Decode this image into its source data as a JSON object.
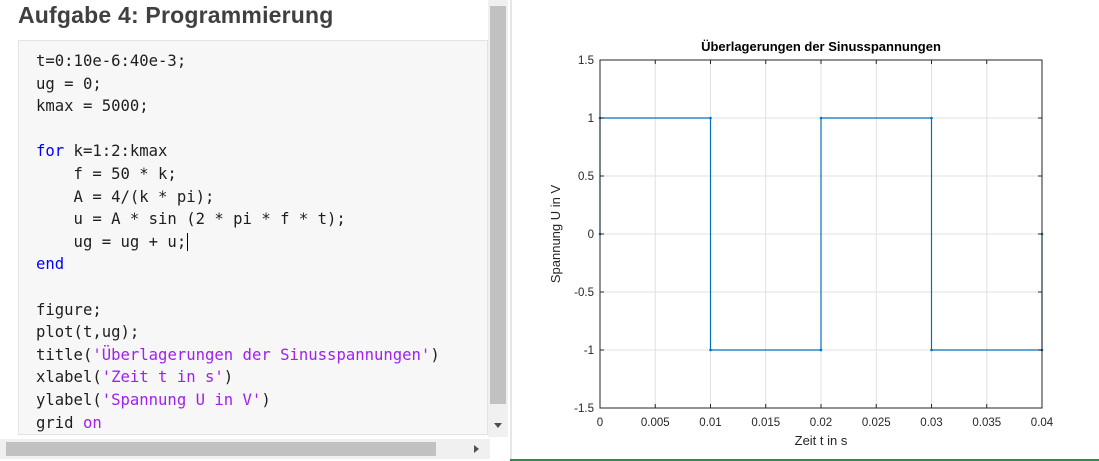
{
  "section": {
    "title": "Aufgabe 4: Programmierung"
  },
  "code": {
    "lines": [
      [
        {
          "t": "t=0:10e-6:40e-3;",
          "k": "plain"
        }
      ],
      [
        {
          "t": "ug = 0;",
          "k": "plain"
        }
      ],
      [
        {
          "t": "kmax = 5000;",
          "k": "plain"
        }
      ],
      [
        {
          "t": "",
          "k": "plain"
        }
      ],
      [
        {
          "t": "for",
          "k": "keyword"
        },
        {
          "t": " k=1:2:kmax",
          "k": "plain"
        }
      ],
      [
        {
          "t": "    f = 50 * k;",
          "k": "plain"
        }
      ],
      [
        {
          "t": "    A = 4/(k * pi);",
          "k": "plain"
        }
      ],
      [
        {
          "t": "    u = A * sin (2 * pi * f * t);",
          "k": "plain"
        }
      ],
      [
        {
          "t": "    ug = ug + u;",
          "k": "plain",
          "caret": true
        }
      ],
      [
        {
          "t": "end",
          "k": "keyword"
        }
      ],
      [
        {
          "t": "",
          "k": "plain"
        }
      ],
      [
        {
          "t": "figure;",
          "k": "plain"
        }
      ],
      [
        {
          "t": "plot(t,ug);",
          "k": "plain"
        }
      ],
      [
        {
          "t": "title(",
          "k": "plain"
        },
        {
          "t": "'Überlagerungen der Sinusspannungen'",
          "k": "string"
        },
        {
          "t": ")",
          "k": "plain"
        }
      ],
      [
        {
          "t": "xlabel(",
          "k": "plain"
        },
        {
          "t": "'Zeit t in s'",
          "k": "string"
        },
        {
          "t": ")",
          "k": "plain"
        }
      ],
      [
        {
          "t": "ylabel(",
          "k": "plain"
        },
        {
          "t": "'Spannung U in V'",
          "k": "string"
        },
        {
          "t": ")",
          "k": "plain"
        }
      ],
      [
        {
          "t": "grid ",
          "k": "plain"
        },
        {
          "t": "on",
          "k": "string"
        }
      ]
    ]
  },
  "colors": {
    "keyword": "#0000ff",
    "string": "#a020f0",
    "line": "#0072bd",
    "grid": "#e1e1e1"
  },
  "icons": {
    "scroll_down": "chevron-down-icon",
    "scroll_right": "chevron-right-icon"
  },
  "chart_data": {
    "type": "line",
    "title": "Überlagerungen der Sinusspannungen",
    "xlabel": "Zeit t in s",
    "ylabel": "Spannung U in V",
    "xlim": [
      0,
      0.04
    ],
    "ylim": [
      -1.5,
      1.5
    ],
    "xticks": [
      0,
      0.005,
      0.01,
      0.015,
      0.02,
      0.025,
      0.03,
      0.035,
      0.04
    ],
    "xtick_labels": [
      "0",
      "0.005",
      "0.01",
      "0.015",
      "0.02",
      "0.025",
      "0.03",
      "0.035",
      "0.04"
    ],
    "yticks": [
      -1.5,
      -1,
      -0.5,
      0,
      0.5,
      1,
      1.5
    ],
    "ytick_labels": [
      "-1.5",
      "-1",
      "-0.5",
      "0",
      "0.5",
      "1",
      "1.5"
    ],
    "grid": true,
    "series": [
      {
        "x": [
          0,
          0,
          0.01,
          0.01,
          0.02,
          0.02,
          0.03,
          0.03,
          0.04,
          0.04
        ],
        "y": [
          0,
          1,
          1,
          -1,
          -1,
          1,
          1,
          -1,
          -1,
          0
        ]
      }
    ]
  }
}
